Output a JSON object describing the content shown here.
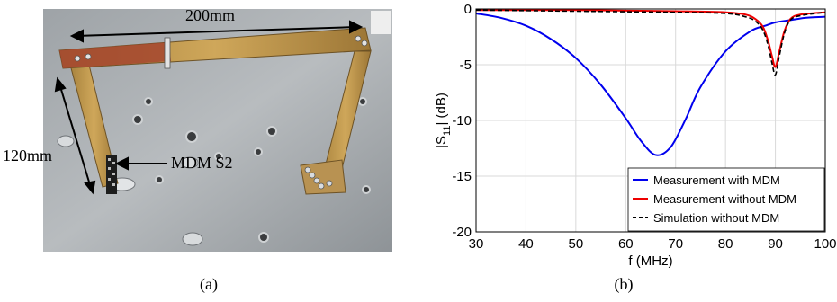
{
  "panel_a": {
    "caption": "(a)",
    "labels": {
      "width": "200mm",
      "height": "120mm",
      "probe": "MDM S2"
    }
  },
  "panel_b": {
    "caption": "(b)"
  },
  "chart_data": {
    "type": "line",
    "title": "",
    "xlabel": "f (MHz)",
    "ylabel": "|S11| (dB)",
    "ylabel_main": "|S",
    "ylabel_sub": "11",
    "ylabel_rest": "| (dB)",
    "xlim": [
      30,
      100
    ],
    "ylim": [
      -20,
      0
    ],
    "xticks": [
      30,
      40,
      50,
      60,
      70,
      80,
      90,
      100
    ],
    "yticks": [
      0,
      -5,
      -10,
      -15,
      -20
    ],
    "grid": true,
    "legend_position": "bottom-right",
    "series": [
      {
        "name": "Measurement with MDM",
        "color": "#0000ee",
        "style": "solid",
        "x": [
          30,
          35,
          40,
          45,
          50,
          55,
          60,
          63,
          66,
          69,
          72,
          75,
          80,
          85,
          88,
          90,
          93,
          96,
          100
        ],
        "y": [
          -0.4,
          -0.8,
          -1.5,
          -2.7,
          -4.4,
          -6.8,
          -9.8,
          -11.8,
          -13.1,
          -12.4,
          -9.9,
          -7.0,
          -3.8,
          -2.0,
          -1.5,
          -1.2,
          -1.0,
          -0.8,
          -0.7
        ]
      },
      {
        "name": "Measurement without MDM",
        "color": "#ee0000",
        "style": "solid",
        "x": [
          30,
          40,
          50,
          60,
          70,
          80,
          84,
          86,
          87.5,
          88.5,
          89.3,
          90,
          90.8,
          91.8,
          93,
          95,
          100
        ],
        "y": [
          -0.1,
          -0.1,
          -0.1,
          -0.15,
          -0.2,
          -0.3,
          -0.5,
          -0.9,
          -1.6,
          -2.8,
          -4.2,
          -5.2,
          -3.8,
          -2.0,
          -0.9,
          -0.5,
          -0.3
        ]
      },
      {
        "name": "Simulation without MDM",
        "color": "#000000",
        "style": "dashed",
        "x": [
          30,
          40,
          50,
          60,
          70,
          80,
          84,
          86,
          87.5,
          88.5,
          89.3,
          90,
          90.8,
          91.8,
          93,
          95,
          100
        ],
        "y": [
          -0.1,
          -0.15,
          -0.2,
          -0.25,
          -0.3,
          -0.4,
          -0.7,
          -1.1,
          -1.9,
          -3.2,
          -4.8,
          -5.9,
          -4.2,
          -2.2,
          -1.0,
          -0.6,
          -0.3
        ]
      }
    ]
  }
}
